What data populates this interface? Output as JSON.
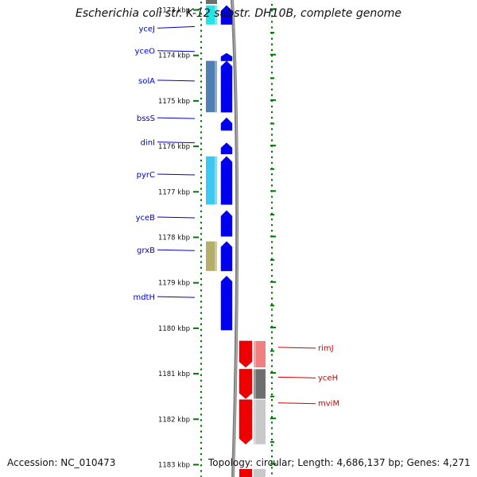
{
  "title": "Escherichia coli str. K-12 substr. DH10B, complete genome",
  "footer": {
    "accession": "Accession: NC_010473",
    "topology": "Topology: circular; Length: 4,686,137 bp; Genes: 4,271"
  },
  "colors": {
    "forward_cog": "#0000ee",
    "reverse_cog": "#ee0000",
    "ticks": "#007700",
    "backbone": "#808080"
  },
  "scale_ticks": [
    {
      "kbp": 1173,
      "label": "1173 kbp"
    },
    {
      "kbp": 1174,
      "label": "1174 kbp"
    },
    {
      "kbp": 1175,
      "label": "1175 kbp"
    },
    {
      "kbp": 1176,
      "label": "1176 kbp"
    },
    {
      "kbp": 1177,
      "label": "1177 kbp"
    },
    {
      "kbp": 1178,
      "label": "1178 kbp"
    },
    {
      "kbp": 1179,
      "label": "1179 kbp"
    },
    {
      "kbp": 1180,
      "label": "1180 kbp"
    },
    {
      "kbp": 1181,
      "label": "1181 kbp"
    },
    {
      "kbp": 1182,
      "label": "1182 kbp"
    },
    {
      "kbp": 1183,
      "label": "1183 kbp"
    }
  ],
  "forward_genes": [
    {
      "name": "yceJ",
      "start": 1172.9,
      "end": 1173.32,
      "cog_color": "#1fe6e6"
    },
    {
      "name": "yceO",
      "start": 1173.95,
      "end": 1174.12,
      "cog_color": null
    },
    {
      "name": "solA",
      "start": 1174.12,
      "end": 1175.25,
      "cog_color": "#4f7fb3"
    },
    {
      "name": "bssS",
      "start": 1175.37,
      "end": 1175.65,
      "cog_color": null
    },
    {
      "name": "dinI",
      "start": 1175.92,
      "end": 1176.17,
      "cog_color": null
    },
    {
      "name": "pyrC",
      "start": 1176.22,
      "end": 1177.28,
      "cog_color": "#3cc8f0"
    },
    {
      "name": "yceB",
      "start": 1177.41,
      "end": 1177.98,
      "cog_color": null
    },
    {
      "name": "grxB",
      "start": 1178.09,
      "end": 1178.74,
      "cog_color": "#b5ad6b"
    },
    {
      "name": "mdtH",
      "start": 1178.85,
      "end": 1180.04,
      "cog_color": null
    }
  ],
  "reverse_genes": [
    {
      "name": "rimJ",
      "start": 1180.28,
      "end": 1180.86,
      "cog_color": "#f08080"
    },
    {
      "name": "yceH",
      "start": 1180.9,
      "end": 1181.55,
      "cog_color": "#6e6e6e"
    },
    {
      "name": "mviM",
      "start": 1181.57,
      "end": 1182.55,
      "cog_color": "#c8c8c8"
    }
  ]
}
